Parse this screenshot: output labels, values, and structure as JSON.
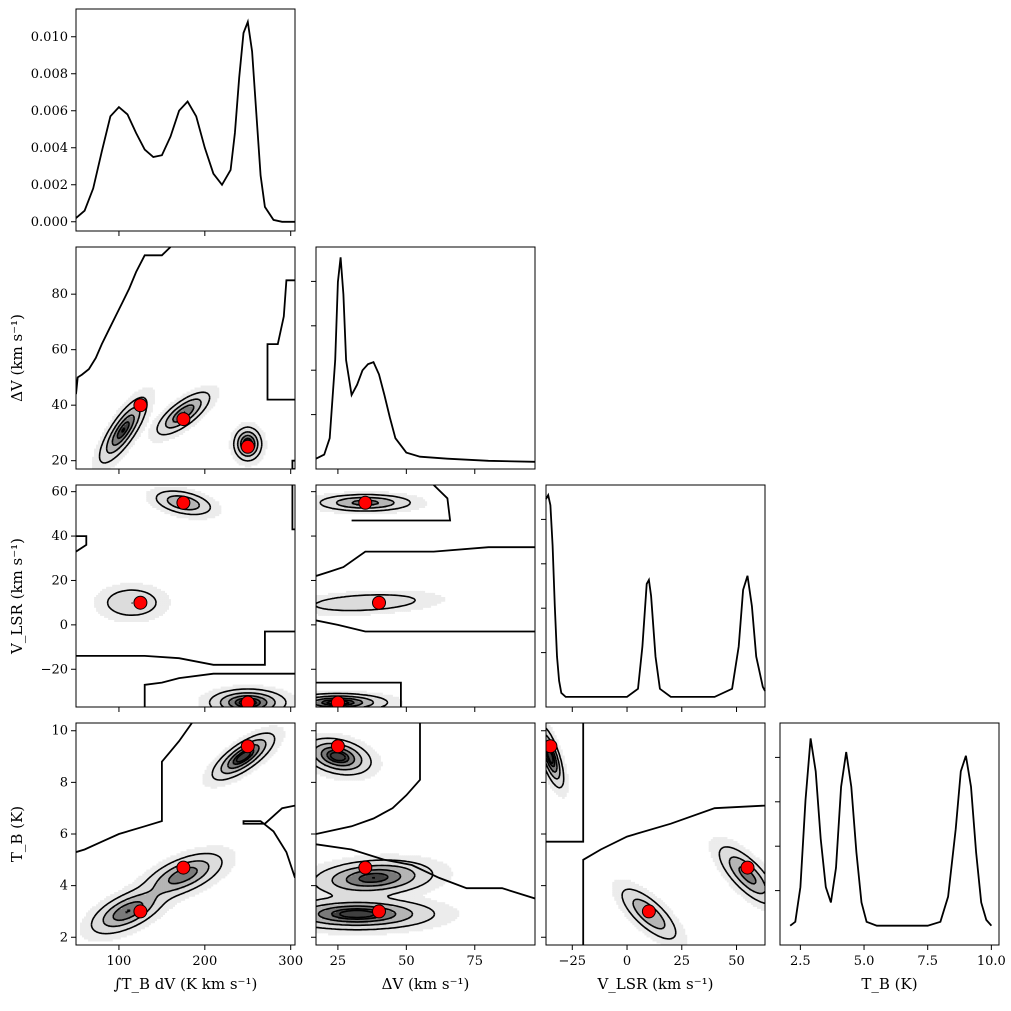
{
  "chart_data": {
    "type": "corner",
    "parameters": [
      {
        "label": "∫T_B dV (K km s⁻¹)",
        "range": [
          50,
          305
        ],
        "ticks": [
          100,
          200,
          300
        ],
        "tick_labels": [
          "100",
          "200",
          "300"
        ],
        "truths": [
          125,
          175,
          250
        ]
      },
      {
        "label": "ΔV (km s⁻¹)",
        "range": [
          17,
          97
        ],
        "ticks": [
          20,
          40,
          60,
          80
        ],
        "tick_labels": [
          "20",
          "40",
          "60",
          "80"
        ],
        "x_ticks": [
          25,
          50,
          75
        ],
        "x_tick_labels": [
          "25",
          "50",
          "75"
        ],
        "truths": [
          40,
          35,
          25
        ]
      },
      {
        "label": "V_LSR (km s⁻¹)",
        "range": [
          -37,
          63
        ],
        "ticks": [
          -20,
          0,
          20,
          40,
          60
        ],
        "tick_labels": [
          "−20",
          "0",
          "20",
          "40",
          "60"
        ],
        "x_ticks": [
          -25,
          0,
          25,
          50
        ],
        "x_tick_labels": [
          "−25",
          "0",
          "25",
          "50"
        ],
        "truths": [
          10,
          55,
          -35
        ]
      },
      {
        "label": "T_B (K)",
        "range": [
          1.7,
          10.3
        ],
        "ticks": [
          2,
          4,
          6,
          8,
          10
        ],
        "tick_labels": [
          "2",
          "4",
          "6",
          "8",
          "10"
        ],
        "x_ticks": [
          2.5,
          5.0,
          7.5,
          10.0
        ],
        "x_tick_labels": [
          "2.5",
          "5.0",
          "7.5",
          "10.0"
        ],
        "truths": [
          3,
          4.7,
          9.4
        ]
      }
    ],
    "hist_0": {
      "yrange": [
        -0.0005,
        0.0115
      ],
      "yticks": [
        0.0,
        0.002,
        0.004,
        0.006,
        0.008,
        0.01
      ],
      "ytick_labels": [
        "0.000",
        "0.002",
        "0.004",
        "0.006",
        "0.008",
        "0.010"
      ],
      "x": [
        50,
        60,
        70,
        80,
        90,
        100,
        110,
        120,
        130,
        140,
        150,
        160,
        170,
        180,
        190,
        200,
        210,
        220,
        230,
        235,
        240,
        245,
        250,
        255,
        260,
        265,
        270,
        280,
        290,
        305
      ],
      "y": [
        0.0002,
        0.0006,
        0.0018,
        0.0038,
        0.0057,
        0.0062,
        0.0058,
        0.0048,
        0.0039,
        0.0035,
        0.0036,
        0.0046,
        0.006,
        0.0065,
        0.0057,
        0.004,
        0.0026,
        0.002,
        0.0028,
        0.0048,
        0.0078,
        0.0102,
        0.0108,
        0.0092,
        0.0058,
        0.0025,
        0.0008,
        0.0001,
        0.0,
        0.0
      ]
    },
    "hist_1": {
      "x": [
        17,
        20,
        22,
        24,
        25,
        26,
        27,
        28,
        30,
        32,
        34,
        36,
        38,
        40,
        42,
        44,
        46,
        50,
        55,
        65,
        80,
        97
      ],
      "y": [
        0.02,
        0.04,
        0.12,
        0.5,
        0.88,
        1.0,
        0.82,
        0.5,
        0.33,
        0.38,
        0.45,
        0.48,
        0.49,
        0.43,
        0.33,
        0.22,
        0.12,
        0.05,
        0.03,
        0.02,
        0.01,
        0.005
      ]
    },
    "hist_2": {
      "x": [
        -37,
        -36,
        -35,
        -34,
        -33,
        -32,
        -31,
        -30,
        -28,
        -25,
        0,
        5,
        7,
        9,
        10,
        11,
        13,
        15,
        20,
        40,
        48,
        51,
        53,
        55,
        57,
        59,
        62,
        63
      ],
      "y": [
        0.98,
        1.0,
        0.95,
        0.75,
        0.45,
        0.2,
        0.08,
        0.02,
        0.0,
        0.0,
        0.0,
        0.04,
        0.25,
        0.56,
        0.58,
        0.5,
        0.2,
        0.04,
        0.0,
        0.0,
        0.04,
        0.25,
        0.53,
        0.6,
        0.45,
        0.2,
        0.05,
        0.03
      ]
    },
    "hist_3": {
      "x": [
        2.1,
        2.3,
        2.5,
        2.7,
        2.9,
        3.1,
        3.3,
        3.5,
        3.7,
        3.9,
        4.1,
        4.3,
        4.5,
        4.7,
        4.9,
        5.1,
        5.5,
        6.5,
        7.5,
        8.0,
        8.3,
        8.6,
        8.8,
        9.0,
        9.2,
        9.4,
        9.6,
        9.8,
        10.0
      ],
      "y": [
        0.0,
        0.02,
        0.2,
        0.65,
        0.97,
        0.8,
        0.45,
        0.2,
        0.12,
        0.3,
        0.72,
        0.9,
        0.72,
        0.38,
        0.12,
        0.02,
        0.0,
        0.0,
        0.0,
        0.02,
        0.15,
        0.5,
        0.8,
        0.88,
        0.72,
        0.38,
        0.12,
        0.03,
        0.0
      ]
    },
    "blobs_2d": {
      "1-0": [
        {
          "cx": 105,
          "cy": 31,
          "sx": 14,
          "sy": 6,
          "rho": 0.8,
          "w": 0.9
        },
        {
          "cx": 175,
          "cy": 37,
          "sx": 16,
          "sy": 4,
          "rho": 0.75,
          "w": 0.8
        },
        {
          "cx": 250,
          "cy": 26,
          "sx": 8,
          "sy": 3,
          "rho": 0.0,
          "w": 1.0
        }
      ],
      "2-0": [
        {
          "cx": 175,
          "cy": 55,
          "sx": 18,
          "sy": 3,
          "rho": -0.4,
          "w": 0.6
        },
        {
          "cx": 115,
          "cy": 10,
          "sx": 20,
          "sy": 4,
          "rho": 0.0,
          "w": 0.35
        },
        {
          "cx": 250,
          "cy": -35,
          "sx": 22,
          "sy": 3,
          "rho": 0.0,
          "w": 1.0
        }
      ],
      "2-1": [
        {
          "cx": 35,
          "cy": 55,
          "sx": 9,
          "sy": 2,
          "rho": 0.0,
          "w": 0.7
        },
        {
          "cx": 35,
          "cy": 10,
          "sx": 13,
          "sy": 2.5,
          "rho": 0.3,
          "w": 0.35
        },
        {
          "cx": 25,
          "cy": -35,
          "sx": 9,
          "sy": 2,
          "rho": 0.0,
          "w": 1.0
        }
      ],
      "3-0": [
        {
          "cx": 110,
          "cy": 3.0,
          "sx": 22,
          "sy": 0.45,
          "rho": 0.6,
          "w": 0.8
        },
        {
          "cx": 175,
          "cy": 4.4,
          "sx": 24,
          "sy": 0.45,
          "rho": 0.6,
          "w": 0.75
        },
        {
          "cx": 245,
          "cy": 9.0,
          "sx": 18,
          "sy": 0.45,
          "rho": 0.75,
          "w": 1.0
        }
      ],
      "3-1": [
        {
          "cx": 25,
          "cy": 9.0,
          "sx": 6,
          "sy": 0.35,
          "rho": -0.3,
          "w": 1.0
        },
        {
          "cx": 38,
          "cy": 4.3,
          "sx": 11,
          "sy": 0.35,
          "rho": 0.2,
          "w": 0.9
        },
        {
          "cx": 32,
          "cy": 2.9,
          "sx": 14,
          "sy": 0.3,
          "rho": 0.0,
          "w": 1.0
        }
      ],
      "3-2": [
        {
          "cx": -35,
          "cy": 9.0,
          "sx": 3,
          "sy": 0.6,
          "rho": -0.7,
          "w": 1.0
        },
        {
          "cx": 10,
          "cy": 2.9,
          "sx": 7,
          "sy": 0.55,
          "rho": -0.75,
          "w": 0.6
        },
        {
          "cx": 55,
          "cy": 4.4,
          "sx": 7,
          "sy": 0.6,
          "rho": -0.75,
          "w": 0.7
        }
      ]
    },
    "outer_contours_2d": {
      "1-0": [
        [
          [
            50,
            44
          ],
          [
            52,
            50
          ],
          [
            57,
            51
          ],
          [
            65,
            53
          ],
          [
            73,
            57
          ],
          [
            80,
            62
          ],
          [
            88,
            67
          ],
          [
            96,
            72
          ],
          [
            104,
            77
          ],
          [
            112,
            82
          ],
          [
            120,
            88
          ],
          [
            130,
            94
          ],
          [
            150,
            94
          ],
          [
            160,
            97
          ]
        ],
        [
          [
            305,
            85
          ],
          [
            295,
            85
          ],
          [
            292,
            72
          ],
          [
            285,
            62
          ],
          [
            273,
            62
          ],
          [
            273,
            42
          ],
          [
            305,
            42
          ]
        ],
        [
          [
            305,
            17
          ],
          [
            302,
            17
          ],
          [
            302,
            20
          ],
          [
            305,
            20
          ]
        ]
      ],
      "2-0": [
        [
          [
            50,
            40
          ],
          [
            62,
            40
          ],
          [
            62,
            36
          ],
          [
            50,
            33
          ]
        ],
        [
          [
            50,
            -14
          ],
          [
            130,
            -14
          ],
          [
            170,
            -15
          ],
          [
            210,
            -18
          ],
          [
            270,
            -18
          ],
          [
            270,
            -3
          ],
          [
            305,
            -3
          ]
        ],
        [
          [
            130,
            -37
          ],
          [
            130,
            -27
          ],
          [
            150,
            -26
          ],
          [
            170,
            -24
          ],
          [
            210,
            -22
          ],
          [
            305,
            -22
          ]
        ],
        [
          [
            302,
            63
          ],
          [
            302,
            43
          ],
          [
            305,
            43
          ]
        ]
      ],
      "2-1": [
        [
          [
            17,
            22
          ],
          [
            22,
            24
          ],
          [
            27,
            26
          ],
          [
            35,
            33
          ],
          [
            60,
            33
          ],
          [
            80,
            35
          ],
          [
            97,
            35
          ]
        ],
        [
          [
            17,
            2
          ],
          [
            25,
            0
          ],
          [
            35,
            -3
          ],
          [
            97,
            -3
          ]
        ],
        [
          [
            17,
            -26
          ],
          [
            48,
            -26
          ],
          [
            48,
            -37
          ]
        ],
        [
          [
            60,
            63
          ],
          [
            65,
            57
          ],
          [
            66,
            47
          ],
          [
            40,
            47
          ],
          [
            30,
            47
          ]
        ]
      ],
      "3-0": [
        [
          [
            50,
            5.3
          ],
          [
            60,
            5.4
          ],
          [
            80,
            5.7
          ],
          [
            100,
            6.0
          ],
          [
            130,
            6.3
          ],
          [
            150,
            6.5
          ],
          [
            150,
            8.8
          ],
          [
            160,
            9.2
          ],
          [
            170,
            9.6
          ],
          [
            185,
            10.3
          ]
        ],
        [
          [
            305,
            7.1
          ],
          [
            290,
            7.0
          ],
          [
            270,
            6.4
          ],
          [
            245,
            6.4
          ],
          [
            245,
            6.5
          ],
          [
            265,
            6.5
          ],
          [
            280,
            6.1
          ],
          [
            295,
            5.3
          ],
          [
            305,
            4.3
          ]
        ]
      ],
      "3-1": [
        [
          [
            55,
            10.3
          ],
          [
            55,
            8.1
          ],
          [
            50,
            7.5
          ],
          [
            45,
            7.0
          ],
          [
            38,
            6.6
          ],
          [
            30,
            6.3
          ],
          [
            17,
            6.0
          ]
        ],
        [
          [
            17,
            5.6
          ],
          [
            30,
            5.4
          ],
          [
            42,
            5.0
          ],
          [
            52,
            4.8
          ],
          [
            62,
            4.3
          ],
          [
            72,
            3.9
          ],
          [
            85,
            3.9
          ],
          [
            97,
            3.5
          ]
        ]
      ],
      "3-2": [
        [
          [
            -37,
            5.7
          ],
          [
            -20,
            5.7
          ],
          [
            -20,
            10.3
          ]
        ],
        [
          [
            -20,
            1.7
          ],
          [
            -20,
            5.0
          ],
          [
            -12,
            5.4
          ],
          [
            0,
            5.9
          ],
          [
            20,
            6.4
          ],
          [
            40,
            7.0
          ],
          [
            63,
            7.1
          ]
        ]
      ]
    }
  }
}
